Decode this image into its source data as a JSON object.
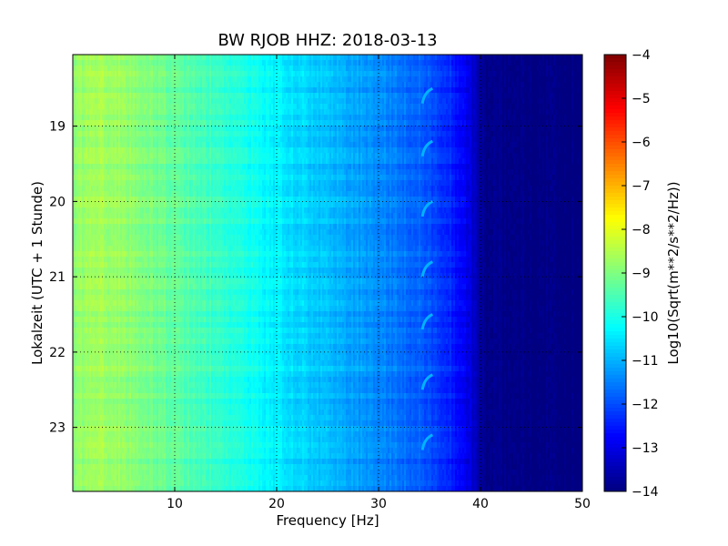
{
  "chart_data": {
    "type": "heatmap",
    "title": "BW RJOB HHZ: 2018-03-13",
    "xlabel": "Frequency [Hz]",
    "ylabel": "Lokalzeit (UTC + 1 Stunde)",
    "xlim": [
      0,
      50
    ],
    "ylim": [
      18.05,
      23.85
    ],
    "y_inverted": true,
    "grid": true,
    "xticks": [
      10,
      20,
      30,
      40,
      50
    ],
    "yticks": [
      19,
      20,
      21,
      22,
      23
    ],
    "colormap": "jet",
    "colorbar": {
      "label": "Log10(Sqrt(m**2/s**2/Hz))",
      "range": [
        -14,
        -4
      ],
      "ticks": [
        -4,
        -5,
        -6,
        -7,
        -8,
        -9,
        -10,
        -11,
        -12,
        -13,
        -14
      ]
    },
    "spectrum_profile": {
      "frequency_hz": [
        0,
        2,
        5,
        10,
        15,
        20,
        25,
        30,
        34,
        37,
        38.5,
        39.5,
        40.5,
        50
      ],
      "log10_amplitude": [
        -8.9,
        -8.6,
        -8.8,
        -9.3,
        -9.8,
        -10.4,
        -10.9,
        -11.4,
        -11.8,
        -12.4,
        -12.8,
        -13.4,
        -13.9,
        -14.0
      ]
    },
    "recurring_feature": {
      "frequency_hz": [
        34.3,
        35.3
      ],
      "local_time_hours": [
        18.6,
        19.3,
        20.1,
        20.9,
        21.6,
        22.4,
        23.2
      ],
      "log10_amplitude": -11.0
    }
  }
}
